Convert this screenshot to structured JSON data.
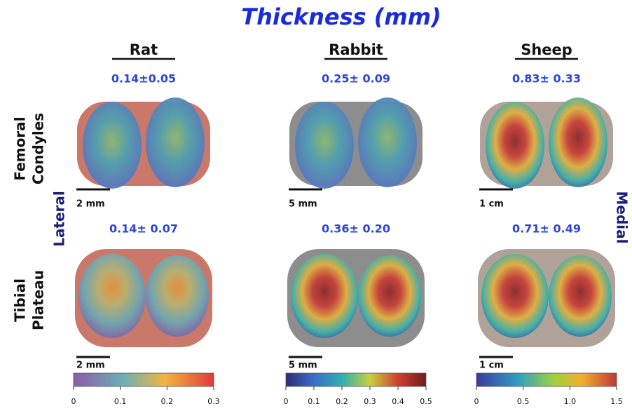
{
  "title": "Thickness (mm)",
  "rows": [
    {
      "lines": [
        "Femoral",
        "Condyles"
      ]
    },
    {
      "lines": [
        "Tibial",
        "Plateau"
      ]
    }
  ],
  "sides": {
    "left": "Lateral",
    "right": "Medial"
  },
  "columns": [
    {
      "name": "Rat",
      "femoral_value": "0.14±0.05",
      "femoral_scale": "2 mm",
      "tibial_value": "0.14± 0.07",
      "tibial_scale": "2 mm",
      "colorbar_ticks": [
        "0",
        "0.1",
        "0.2",
        "0.3"
      ]
    },
    {
      "name": "Rabbit",
      "femoral_value": "0.25± 0.09",
      "femoral_scale": "5 mm",
      "tibial_value": "0.36± 0.20",
      "tibial_scale": "5 mm",
      "colorbar_ticks": [
        "0",
        "0.1",
        "0.2",
        "0.3",
        "0.4",
        "0.5"
      ]
    },
    {
      "name": "Sheep",
      "femoral_value": "0.83± 0.33",
      "femoral_scale": "1 cm",
      "tibial_value": "0.71± 0.49",
      "tibial_scale": "1 cm",
      "colorbar_ticks": [
        "0",
        "0.5",
        "1.0",
        "1.5"
      ]
    }
  ]
}
